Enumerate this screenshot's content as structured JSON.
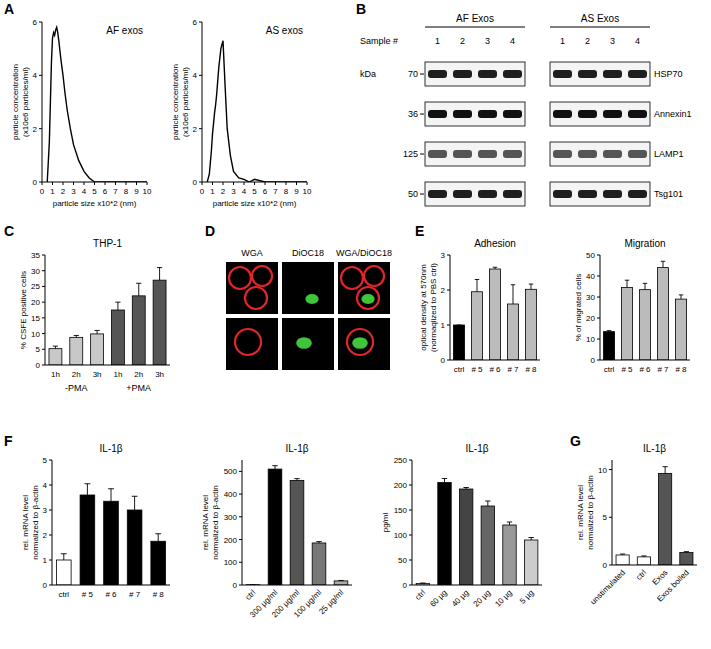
{
  "panel_labels": [
    "A",
    "B",
    "C",
    "D",
    "E",
    "F",
    "G"
  ],
  "chart_data": [
    {
      "type": "line",
      "title": "AF exos",
      "x_label": "particle size x10*2 (nm)",
      "y_label": [
        "particle concentration",
        "(x10e6 particles/ml)"
      ],
      "x": [
        0.5,
        0.7,
        0.9,
        1.0,
        1.1,
        1.2,
        1.3,
        1.4,
        1.5,
        1.6,
        1.8,
        2.0,
        2.2,
        2.4,
        2.7,
        3.0,
        3.5,
        4.0,
        4.5,
        5.0,
        6,
        7,
        8,
        9,
        10
      ],
      "values": [
        0,
        1.5,
        4.5,
        5.4,
        5.6,
        5.5,
        5.7,
        5.8,
        5.6,
        5.3,
        4.6,
        4.0,
        3.3,
        2.7,
        2.0,
        1.4,
        0.8,
        0.4,
        0.15,
        0,
        0,
        0,
        0,
        0,
        0
      ],
      "color": "#000000",
      "xlim": [
        0,
        10
      ],
      "xticks": [
        0,
        1,
        2,
        3,
        4,
        5,
        6,
        7,
        8,
        9,
        10
      ],
      "ylim": [
        0,
        6
      ],
      "yticks": [
        0,
        2,
        4,
        6
      ]
    },
    {
      "type": "line",
      "title": "AS exos",
      "x_label": "particle size x10*2 (nm)",
      "y_label": [
        "particle concentration",
        "(x10e6 particles/ml)"
      ],
      "x": [
        0.5,
        0.7,
        0.9,
        1.0,
        1.1,
        1.2,
        1.3,
        1.4,
        1.5,
        1.6,
        1.8,
        2.0,
        2.2,
        2.4,
        2.7,
        3.0,
        3.5,
        4.0,
        4.5,
        5.0,
        6,
        7,
        8,
        9,
        10
      ],
      "values": [
        0,
        0.3,
        1.2,
        1.8,
        2.2,
        2.6,
        2.9,
        3.3,
        3.8,
        4.3,
        5.0,
        5.3,
        3.6,
        2.0,
        1.0,
        0.4,
        0.15,
        0.1,
        0,
        0.1,
        0,
        0,
        0,
        0,
        0
      ],
      "color": "#000000",
      "xlim": [
        0,
        10
      ],
      "xticks": [
        0,
        1,
        2,
        3,
        4,
        5,
        6,
        7,
        8,
        9,
        10
      ],
      "ylim": [
        0,
        6
      ],
      "yticks": [
        0,
        2,
        4,
        6
      ]
    },
    {
      "type": "bar",
      "title": "THP-1",
      "y_label": "% CSFE positive cells",
      "categories": [
        "1h",
        "2h",
        "3h",
        "1h",
        "2h",
        "3h"
      ],
      "values": [
        5.2,
        8.8,
        9.9,
        17.5,
        22,
        27
      ],
      "errors": [
        0.8,
        0.6,
        1.1,
        2.5,
        4,
        4
      ],
      "colors": [
        "#c8c8c8",
        "#c8c8c8",
        "#c8c8c8",
        "#555555",
        "#555555",
        "#555555"
      ],
      "annotations": [
        "-PMA",
        "+PMA"
      ],
      "ylim": [
        0,
        35
      ],
      "yticks": [
        0,
        5,
        10,
        15,
        20,
        25,
        30,
        35
      ]
    },
    {
      "type": "bar",
      "title": "Adhesion",
      "y_label": [
        "optical density at 570nm",
        "(normaqlized to PBS ctrl)"
      ],
      "categories": [
        "ctrl",
        "# 5",
        "# 6",
        "# 7",
        "# 8"
      ],
      "values": [
        1.0,
        1.95,
        2.6,
        1.6,
        2.02
      ],
      "errors": [
        0,
        0.35,
        0.05,
        0.55,
        0.15
      ],
      "colors": [
        "#000000",
        "#bbbbbb",
        "#bbbbbb",
        "#bbbbbb",
        "#bbbbbb"
      ],
      "ylim": [
        0,
        3
      ],
      "yticks": [
        0,
        1,
        2,
        3
      ]
    },
    {
      "type": "bar",
      "title": "Migration",
      "y_label": "% of migrated cells",
      "categories": [
        "ctrl",
        "# 5",
        "# 6",
        "# 7",
        "# 8"
      ],
      "values": [
        13.5,
        34.5,
        33.5,
        44,
        29
      ],
      "errors": [
        0.5,
        3.5,
        3,
        3,
        2
      ],
      "colors": [
        "#000000",
        "#bbbbbb",
        "#bbbbbb",
        "#bbbbbb",
        "#bbbbbb"
      ],
      "ylim": [
        0,
        50
      ],
      "yticks": [
        0,
        10,
        20,
        30,
        40,
        50
      ]
    },
    {
      "type": "bar",
      "title": "IL-1β",
      "y_label": [
        "rel. mRNA level",
        "normalized to β-actin"
      ],
      "categories": [
        "ctrl",
        "# 5",
        "# 6",
        "# 7",
        "# 8"
      ],
      "values": [
        1.0,
        3.6,
        3.35,
        3.0,
        1.75
      ],
      "errors": [
        0.25,
        0.45,
        0.5,
        0.55,
        0.3
      ],
      "colors": [
        "#ffffff",
        "#000000",
        "#000000",
        "#000000",
        "#000000"
      ],
      "ylim": [
        0,
        5
      ],
      "yticks": [
        0,
        1,
        2,
        3,
        4,
        5
      ]
    },
    {
      "type": "bar",
      "title": "IL-1β",
      "y_label": [
        "rel. mRNA level",
        "normalized to β-actin"
      ],
      "categories": [
        "ctrl",
        "300 µg/ml",
        "200 µg/ml",
        "100 µg/ml",
        "25 µg/ml"
      ],
      "values": [
        1,
        510,
        460,
        185,
        18
      ],
      "errors": [
        0.2,
        15,
        8,
        6,
        2
      ],
      "colors": [
        "#000000",
        "#000000",
        "#555555",
        "#777777",
        "#aaaaaa"
      ],
      "ylim": [
        0,
        550
      ],
      "yticks": [
        0,
        100,
        200,
        300,
        400,
        500
      ]
    },
    {
      "type": "bar",
      "title": "IL-1β",
      "y_label": "pg/ml",
      "categories": [
        "ctrl",
        "60 µg",
        "40 µg",
        "20 µg",
        "10 µg",
        "5 µg"
      ],
      "values": [
        3,
        205,
        192,
        158,
        120,
        90
      ],
      "errors": [
        1,
        8,
        3,
        10,
        6,
        5
      ],
      "colors": [
        "#ffffff",
        "#000000",
        "#444444",
        "#666666",
        "#999999",
        "#cccccc"
      ],
      "ylim": [
        0,
        250
      ],
      "yticks": [
        0,
        50,
        100,
        150,
        200,
        250
      ]
    },
    {
      "type": "bar",
      "title": "IL-1β",
      "y_label": [
        "rel. mRNA level",
        "normalized to β-actin"
      ],
      "categories": [
        "unstimulated",
        "ctrl",
        "Exos",
        "Exos boiled"
      ],
      "values": [
        1.05,
        0.85,
        9.6,
        1.3
      ],
      "errors": [
        0.1,
        0.1,
        0.7,
        0.1
      ],
      "colors": [
        "#ffffff",
        "#ffffff",
        "#555555",
        "#555555"
      ],
      "ylim": [
        0,
        11
      ],
      "yticks": [
        0,
        5,
        10
      ]
    }
  ],
  "blot": {
    "groups": [
      "AF Exos",
      "AS Exos"
    ],
    "sample_label": "Sample #",
    "lanes": [
      "1",
      "2",
      "3",
      "4"
    ],
    "kda_label": "kDa",
    "rows": [
      {
        "kda": 70,
        "protein": "HSP70"
      },
      {
        "kda": 36,
        "protein": "Annexin1"
      },
      {
        "kda": 125,
        "protein": "LAMP1"
      },
      {
        "kda": 50,
        "protein": "Tsg101"
      }
    ]
  },
  "micrograph": {
    "columns": [
      "WGA",
      "DiOC18",
      "WGA/DiOC18"
    ]
  }
}
